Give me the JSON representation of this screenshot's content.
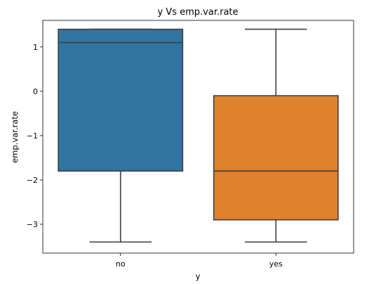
{
  "chart_data": {
    "type": "box",
    "title": "y Vs emp.var.rate",
    "xlabel": "y",
    "ylabel": "emp.var.rate",
    "categories": [
      "no",
      "yes"
    ],
    "ylim": [
      -3.65,
      1.6
    ],
    "yticks": [
      1,
      0,
      -1,
      -2,
      -3
    ],
    "ytick_labels": [
      "1",
      "0",
      "−1",
      "−2",
      "−3"
    ],
    "grid": false,
    "boxes": [
      {
        "category": "no",
        "whisker_low": -3.4,
        "q1": -1.8,
        "median": 1.1,
        "q3": 1.4,
        "whisker_high": 1.4,
        "color": "#3274a1"
      },
      {
        "category": "yes",
        "whisker_low": -3.4,
        "q1": -2.9,
        "median": -1.8,
        "q3": -0.1,
        "whisker_high": 1.4,
        "color": "#e1812c"
      }
    ],
    "line_color": "#3f3f3f"
  }
}
